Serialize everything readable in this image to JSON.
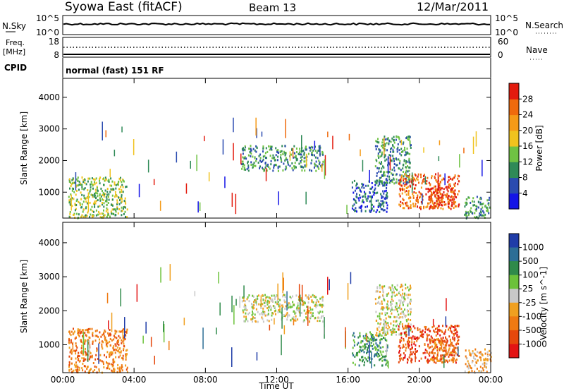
{
  "header": {
    "title": "Syowa East (fitACF)",
    "beam": "Beam 13",
    "date": "12/Mar/2011"
  },
  "noise_panel": {
    "left_label": "N.Sky",
    "right_label": "N.Search",
    "left_ticks": [
      "10^5",
      "10^0"
    ],
    "right_ticks": [
      "10^5",
      "10^0"
    ]
  },
  "freq_panel": {
    "left_label_line1": "Freq.",
    "left_label_line2": "[MHz]",
    "right_label": "Nave",
    "left_ticks": [
      "18",
      "8"
    ],
    "right_ticks": [
      "60",
      "0"
    ]
  },
  "cpid_panel": {
    "label": "CPID",
    "text": "normal (fast) 151 RF"
  },
  "chart_data": [
    {
      "type": "heatmap",
      "name": "power",
      "ylabel": "Slant Range [km]",
      "ylim": [
        180,
        4600
      ],
      "yticks": [
        "1000",
        "2000",
        "3000",
        "4000"
      ],
      "colorbar": {
        "label": "Power [dB]",
        "ticks": [
          "4",
          "8",
          "12",
          "16",
          "20",
          "24",
          "28"
        ],
        "colors": [
          "#1414e6",
          "#2a4bb0",
          "#2f8a57",
          "#6fc243",
          "#f0c31e",
          "#f59a17",
          "#ef6a0c",
          "#e31b0e"
        ]
      },
      "echo_regions": [
        {
          "t": [
            0.3,
            3.6
          ],
          "r": [
            200,
            1500
          ],
          "level": 3
        },
        {
          "t": [
            10.0,
            14.6
          ],
          "r": [
            1700,
            2500
          ],
          "level": 2
        },
        {
          "t": [
            16.2,
            18.2
          ],
          "r": [
            400,
            1400
          ],
          "level": 1
        },
        {
          "t": [
            17.5,
            19.5
          ],
          "r": [
            1300,
            2800
          ],
          "level": 2
        },
        {
          "t": [
            18.8,
            22.2
          ],
          "r": [
            500,
            1600
          ],
          "level": 6
        },
        {
          "t": [
            20.5,
            22.0
          ],
          "r": [
            500,
            1200
          ],
          "level": 7
        },
        {
          "t": [
            22.5,
            24.0
          ],
          "r": [
            200,
            900
          ],
          "level": 2
        }
      ]
    },
    {
      "type": "heatmap",
      "name": "velocity",
      "ylabel": "Slant Range [km]",
      "ylim": [
        180,
        4600
      ],
      "yticks": [
        "1000",
        "2000",
        "3000",
        "4000"
      ],
      "colorbar": {
        "label": "Velocity [m s^-1]",
        "ticks": [
          "1000",
          "500",
          "100",
          "25",
          "-25",
          "-100",
          "-500",
          "-1000"
        ],
        "colors": [
          "#1f3ca8",
          "#2d6e96",
          "#2f8a4a",
          "#6cc23a",
          "#c8c8c8",
          "#f0a020",
          "#ef7a12",
          "#e6480c",
          "#e31414"
        ]
      },
      "echo_regions": [
        {
          "t": [
            0.3,
            3.6
          ],
          "r": [
            200,
            1500
          ],
          "level": 6
        },
        {
          "t": [
            10.0,
            14.6
          ],
          "r": [
            1700,
            2500
          ],
          "level": 4
        },
        {
          "t": [
            16.2,
            18.2
          ],
          "r": [
            400,
            1400
          ],
          "level": 2
        },
        {
          "t": [
            17.5,
            19.5
          ],
          "r": [
            1300,
            2800
          ],
          "level": 4
        },
        {
          "t": [
            18.8,
            22.2
          ],
          "r": [
            500,
            1600
          ],
          "level": 7
        },
        {
          "t": [
            20.5,
            22.0
          ],
          "r": [
            500,
            1200
          ],
          "level": 6
        },
        {
          "t": [
            22.5,
            24.0
          ],
          "r": [
            200,
            900
          ],
          "level": 5
        }
      ]
    }
  ],
  "x_axis": {
    "label": "Time UT",
    "xlim": [
      0,
      24
    ],
    "ticks": [
      "00:00",
      "04:00",
      "08:00",
      "12:00",
      "16:00",
      "20:00",
      "00:00"
    ]
  }
}
